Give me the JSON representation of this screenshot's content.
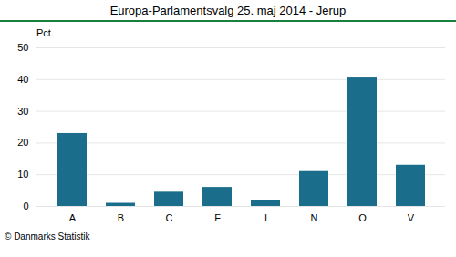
{
  "chart_data": {
    "type": "bar",
    "title": "Europa-Parlamentsvalg 25. maj 2014 - Jerup",
    "categories": [
      "A",
      "B",
      "C",
      "F",
      "I",
      "N",
      "O",
      "V"
    ],
    "values": [
      23.0,
      1.0,
      4.5,
      6.0,
      2.0,
      11.0,
      40.5,
      13.0
    ],
    "color": "#1b6d8c",
    "ylabel": "Pct.",
    "ylim": [
      0,
      50
    ],
    "yticks": [
      0,
      10,
      20,
      30,
      40,
      50
    ],
    "grid": true,
    "footer": "© Danmarks Statistik"
  }
}
